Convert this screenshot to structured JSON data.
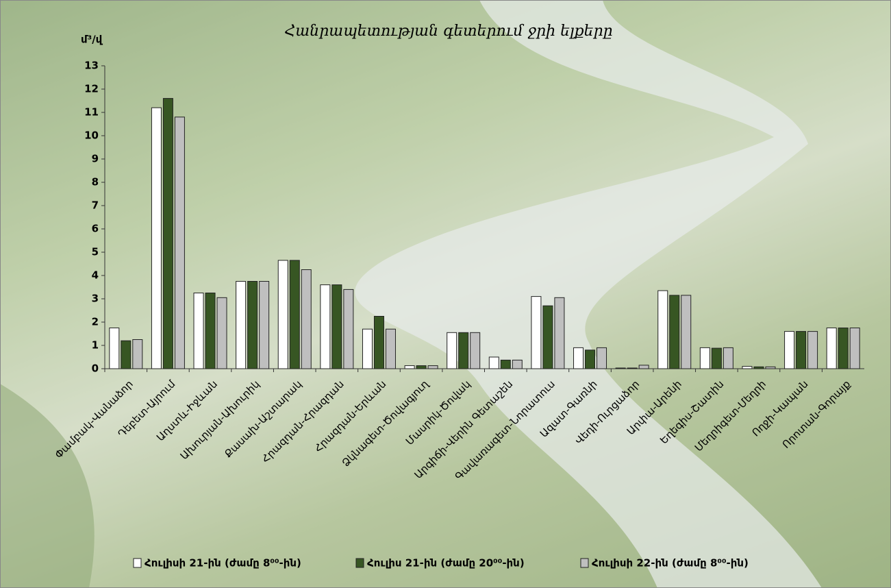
{
  "chart_data": {
    "type": "bar",
    "title": "Հանրապետության գետերում ջրի ելքերը",
    "y_label": "մ³/վ",
    "categories": [
      "Փամբակ-Վանաձոր",
      "Դեբետ-Այրում",
      "Աղստև-Իջևան",
      "Ախուրյան-Ախուրիկ",
      "Քասախ-Աշտարակ",
      "Հրազդան-Հրազդան",
      "Հրազդան-Երևան",
      "Ձկնագետ-Ծովագյուղ",
      "Մասրիկ-Ծովակ",
      "Արգիճի-Վերին Գետաշեն",
      "Գավառագետ-Նորատուս",
      "Ազատ-Գառնի",
      "Վեդի-Ուրցաձոր",
      "Արփա-Արենի",
      "Եղեգիս-Շատին",
      "Մեղրիգետ-Մեղրի",
      "Ողջի-Կապան",
      "Որոտան-Գորայք"
    ],
    "series": [
      {
        "name": "Հուլիսի 21-ին (ժամը 8⁰⁰-ին)",
        "color": "#ffffff",
        "values": [
          1.75,
          11.2,
          3.25,
          3.75,
          4.65,
          3.6,
          1.7,
          0.13,
          1.55,
          0.5,
          3.1,
          0.9,
          0.03,
          3.35,
          0.9,
          0.1,
          1.6,
          1.75
        ]
      },
      {
        "name": "Հուլիս 21-ին (ժամը 20⁰⁰-ին)",
        "color": "#375623",
        "values": [
          1.2,
          11.6,
          3.25,
          3.75,
          4.65,
          3.6,
          2.25,
          0.13,
          1.55,
          0.37,
          2.7,
          0.8,
          0.03,
          3.15,
          0.88,
          0.08,
          1.6,
          1.75
        ]
      },
      {
        "name": "Հուլիսի 22-ին (ժամը 8⁰⁰-ին)",
        "color": "#bfbfbf",
        "values": [
          1.25,
          10.8,
          3.05,
          3.75,
          4.25,
          3.4,
          1.7,
          0.13,
          1.55,
          0.37,
          3.05,
          0.9,
          0.15,
          3.15,
          0.9,
          0.08,
          1.6,
          1.75
        ]
      }
    ],
    "ylim": [
      0,
      13
    ],
    "yticks": [
      0,
      1,
      2,
      3,
      4,
      5,
      6,
      7,
      8,
      9,
      10,
      11,
      12,
      13
    ]
  }
}
